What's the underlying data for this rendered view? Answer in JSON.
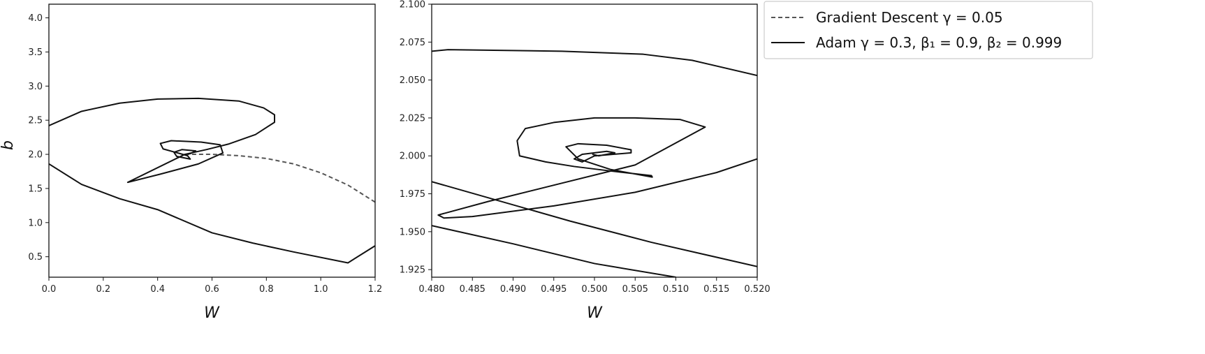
{
  "legend": {
    "location": "upper right, outside plots",
    "entries": [
      {
        "label": "Gradient Descent γ = 0.05",
        "style": "dashed",
        "color": "#555555"
      },
      {
        "label": "Adam γ = 0.3, β₁ = 0.9, β₂ = 0.999",
        "style": "solid",
        "color": "#111111"
      }
    ]
  },
  "chart_data": [
    {
      "type": "line",
      "xlabel": "W",
      "ylabel": "b",
      "xlim": [
        0.0,
        1.2
      ],
      "ylim": [
        0.2,
        4.2
      ],
      "xticks": [
        0.0,
        0.2,
        0.4,
        0.6,
        0.8,
        1.0,
        1.2
      ],
      "xtick_labels": [
        "0.0",
        "0.2",
        "0.4",
        "0.6",
        "0.8",
        "1.0",
        "1.2"
      ],
      "yticks": [
        0.5,
        1.0,
        1.5,
        2.0,
        2.5,
        3.0,
        3.5,
        4.0
      ],
      "ytick_labels": [
        "0.5",
        "1.0",
        "1.5",
        "2.0",
        "2.5",
        "3.0",
        "3.5",
        "4.0"
      ],
      "grid": false,
      "series": [
        {
          "name": "Gradient Descent γ = 0.05",
          "style": "dashed",
          "points": [
            [
              1.2,
              1.3
            ],
            [
              1.1,
              1.55
            ],
            [
              1.0,
              1.73
            ],
            [
              0.9,
              1.86
            ],
            [
              0.8,
              1.94
            ],
            [
              0.7,
              1.98
            ],
            [
              0.6,
              2.0
            ],
            [
              0.55,
              2.0
            ],
            [
              0.5,
              2.0
            ]
          ]
        },
        {
          "name": "Adam γ = 0.3, β₁ = 0.9, β₂ = 0.999",
          "style": "solid",
          "points": [
            [
              1.2,
              0.66
            ],
            [
              1.1,
              0.41
            ],
            [
              0.9,
              0.57
            ],
            [
              0.75,
              0.7
            ],
            [
              0.6,
              0.85
            ],
            [
              0.4,
              1.19
            ],
            [
              0.26,
              1.35
            ],
            [
              0.12,
              1.56
            ],
            [
              0.0,
              1.86
            ],
            [
              -0.05,
              2.0
            ],
            [
              0.0,
              2.42
            ],
            [
              0.12,
              2.63
            ],
            [
              0.26,
              2.75
            ],
            [
              0.4,
              2.81
            ],
            [
              0.55,
              2.82
            ],
            [
              0.7,
              2.78
            ],
            [
              0.79,
              2.68
            ],
            [
              0.83,
              2.58
            ],
            [
              0.83,
              2.47
            ],
            [
              0.76,
              2.29
            ],
            [
              0.66,
              2.15
            ],
            [
              0.58,
              2.07
            ],
            [
              0.5,
              2.0
            ],
            [
              0.29,
              1.59
            ],
            [
              0.41,
              1.71
            ],
            [
              0.55,
              1.86
            ],
            [
              0.64,
              2.02
            ],
            [
              0.63,
              2.14
            ],
            [
              0.56,
              2.18
            ],
            [
              0.45,
              2.2
            ],
            [
              0.41,
              2.16
            ],
            [
              0.42,
              2.08
            ],
            [
              0.51,
              1.98
            ],
            [
              0.52,
              1.93
            ],
            [
              0.47,
              1.97
            ],
            [
              0.46,
              2.03
            ],
            [
              0.49,
              2.07
            ],
            [
              0.54,
              2.05
            ],
            [
              0.52,
              2.01
            ],
            [
              0.5,
              2.0
            ]
          ]
        }
      ]
    },
    {
      "type": "line",
      "xlabel": "W",
      "ylabel": "",
      "xlim": [
        0.48,
        0.52
      ],
      "ylim": [
        1.92,
        2.1
      ],
      "xticks": [
        0.48,
        0.485,
        0.49,
        0.495,
        0.5,
        0.505,
        0.51,
        0.515,
        0.52
      ],
      "xtick_labels": [
        "0.480",
        "0.485",
        "0.490",
        "0.495",
        "0.500",
        "0.505",
        "0.510",
        "0.515",
        "0.520"
      ],
      "yticks": [
        1.925,
        1.95,
        1.975,
        2.0,
        2.025,
        2.05,
        2.075,
        2.1
      ],
      "ytick_labels": [
        "1.925",
        "1.950",
        "1.975",
        "2.000",
        "2.025",
        "2.050",
        "2.075",
        "2.100"
      ],
      "grid": false,
      "series": [
        {
          "name": "Adam γ = 0.3, β₁ = 0.9, β₂ = 0.999",
          "style": "solid",
          "segments": [
            [
              [
                0.48,
                2.069
              ],
              [
                0.482,
                2.07
              ],
              [
                0.496,
                2.069
              ],
              [
                0.506,
                2.067
              ],
              [
                0.512,
                2.063
              ],
              [
                0.52,
                2.053
              ]
            ],
            [
              [
                0.48,
                1.983
              ],
              [
                0.497,
                1.957
              ],
              [
                0.507,
                1.943
              ],
              [
                0.52,
                1.927
              ]
            ],
            [
              [
                0.48,
                1.954
              ],
              [
                0.49,
                1.942
              ],
              [
                0.5,
                1.929
              ],
              [
                0.51,
                1.92
              ]
            ],
            [
              [
                0.52,
                1.998
              ],
              [
                0.515,
                1.989
              ],
              [
                0.505,
                1.976
              ],
              [
                0.495,
                1.967
              ],
              [
                0.485,
                1.96
              ],
              [
                0.4815,
                1.959
              ],
              [
                0.4808,
                1.961
              ],
              [
                0.487,
                1.97
              ],
              [
                0.496,
                1.982
              ],
              [
                0.505,
                1.994
              ],
              [
                0.5136,
                2.019
              ],
              [
                0.5105,
                2.024
              ],
              [
                0.505,
                2.025
              ],
              [
                0.5,
                2.025
              ],
              [
                0.495,
                2.022
              ],
              [
                0.4915,
                2.018
              ],
              [
                0.4905,
                2.01
              ],
              [
                0.4908,
                2.0
              ],
              [
                0.494,
                1.996
              ],
              [
                0.4975,
                1.993
              ],
              [
                0.502,
                1.99
              ],
              [
                0.507,
                1.987
              ],
              [
                0.5071,
                1.986
              ],
              [
                0.502,
                1.991
              ],
              [
                0.498,
                1.998
              ],
              [
                0.4965,
                2.006
              ],
              [
                0.498,
                2.008
              ],
              [
                0.5015,
                2.007
              ],
              [
                0.5045,
                2.004
              ],
              [
                0.5045,
                2.002
              ],
              [
                0.5,
                2.0
              ],
              [
                0.4985,
                1.996
              ],
              [
                0.4975,
                1.998
              ],
              [
                0.4985,
                2.001
              ],
              [
                0.5015,
                2.003
              ],
              [
                0.5025,
                2.002
              ],
              [
                0.5005,
                2.0
              ],
              [
                0.4998,
                2.001
              ],
              [
                0.5003,
                2.0
              ]
            ]
          ]
        }
      ]
    }
  ]
}
